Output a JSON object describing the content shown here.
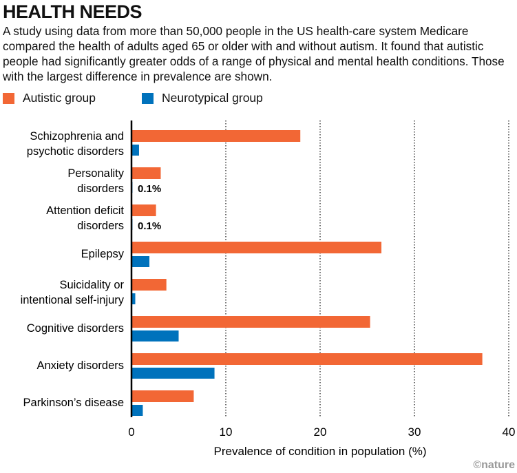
{
  "title": "HEALTH NEEDS",
  "subtitle": "A study using data from more than 50,000 people in the US health-care system Medicare compared the health of adults aged 65 or older with and without autism. It found that autistic people had significantly greater odds of a range of physical and mental health conditions. Those with the largest difference in prevalence are shown.",
  "credit": "©nature",
  "colors": {
    "autistic": "#f26735",
    "neurotypical": "#0072bc"
  },
  "chart_data": {
    "type": "bar",
    "orientation": "horizontal",
    "categories": [
      [
        "Schizophrenia and",
        "psychotic disorders"
      ],
      [
        "Personality",
        "disorders"
      ],
      [
        "Attention deficit",
        "disorders"
      ],
      [
        "Epilepsy"
      ],
      [
        "Suicidality or",
        "intentional self-injury"
      ],
      [
        "Cognitive disorders"
      ],
      [
        "Anxiety disorders"
      ],
      [
        "Parkinson’s disease"
      ]
    ],
    "series": [
      {
        "name": "Autistic group",
        "values": [
          17.9,
          3.1,
          2.6,
          26.5,
          3.7,
          25.3,
          37.2,
          6.6
        ]
      },
      {
        "name": "Neurotypical group",
        "values": [
          0.8,
          0.1,
          0.1,
          1.9,
          0.4,
          5.0,
          8.8,
          1.2
        ]
      }
    ],
    "annotations": [
      "",
      "0.1%",
      "0.1%",
      "",
      "",
      "",
      "",
      ""
    ],
    "xlabel": "Prevalence of condition in population (%)",
    "xlim": [
      0,
      40
    ],
    "xticks": [
      "0",
      "10",
      "20",
      "30",
      "40"
    ],
    "grid": "vertical dotted",
    "legend_placement": "top-left"
  }
}
